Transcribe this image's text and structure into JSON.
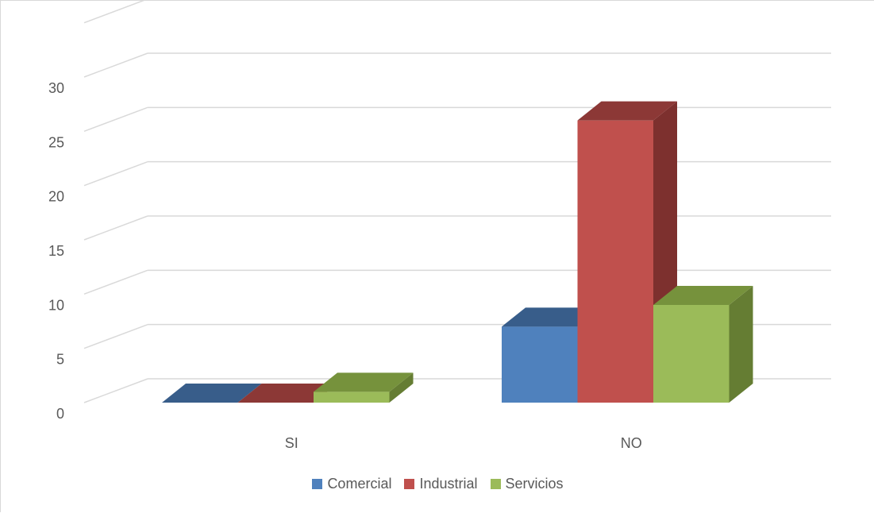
{
  "chart_data": {
    "type": "bar",
    "subtype": "3d-clustered-column",
    "categories": [
      "SI",
      "NO"
    ],
    "series": [
      {
        "name": "Comercial",
        "values": [
          0,
          7
        ],
        "color": "#4f81bd",
        "top_color": "#385d8a",
        "side_color": "#2f4f78"
      },
      {
        "name": "Industrial",
        "values": [
          0,
          26
        ],
        "color": "#c0504d",
        "top_color": "#8c3836",
        "side_color": "#7d302e"
      },
      {
        "name": "Servicios",
        "values": [
          1,
          9
        ],
        "color": "#9bbb59",
        "top_color": "#76923c",
        "side_color": "#657d33"
      }
    ],
    "y_ticks": [
      "0",
      "5",
      "10",
      "15",
      "20",
      "25",
      "30"
    ],
    "ylim": [
      0,
      30
    ],
    "grid": true,
    "legend_position": "bottom",
    "title": "",
    "xlabel": "",
    "ylabel": ""
  }
}
